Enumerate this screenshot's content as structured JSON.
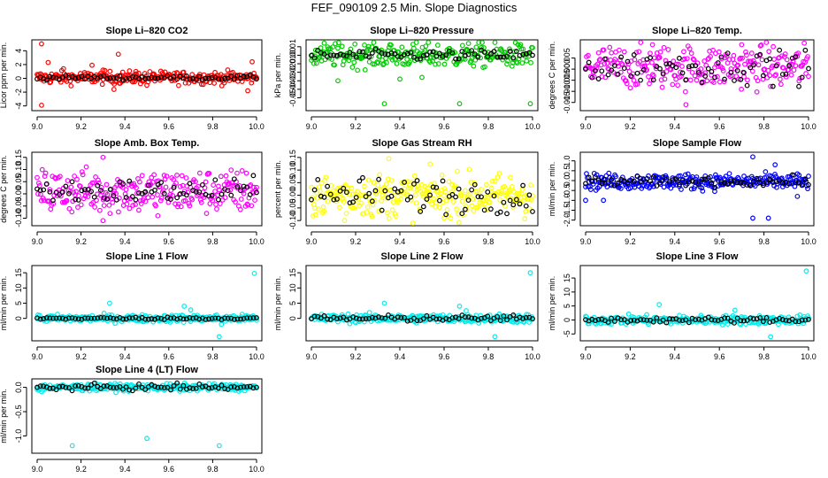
{
  "figure": {
    "title": "FEF_090109  2.5 Min. Slope Diagnostics"
  },
  "chart_data": [
    {
      "type": "scatter",
      "title": "Slope Li–820 CO2",
      "ylabel": "Licor ppm per min.",
      "xlim": [
        9.0,
        10.0
      ],
      "ylim": [
        -4.3,
        5.2
      ],
      "xticks": [
        "9.0",
        "9.2",
        "9.4",
        "9.6",
        "9.8",
        "10.0"
      ],
      "yticks": [
        -4,
        -2,
        0,
        2,
        4
      ],
      "ytick_labels": [
        "-4",
        "-2",
        "0",
        "2",
        "4"
      ],
      "color": "#ff0000",
      "center": 0.1,
      "spread": 0.45,
      "black_spread": 0.15,
      "outliers": [
        [
          9.02,
          5.0
        ],
        [
          9.02,
          -3.9
        ],
        [
          9.05,
          2.3
        ],
        [
          9.12,
          1.4
        ],
        [
          9.25,
          1.9
        ],
        [
          9.3,
          1.2
        ],
        [
          9.35,
          -1.6
        ],
        [
          9.37,
          3.5
        ],
        [
          9.45,
          1.0
        ],
        [
          9.5,
          -1.0
        ],
        [
          9.98,
          2.4
        ],
        [
          9.96,
          -1.8
        ]
      ]
    },
    {
      "type": "scatter",
      "title": "Slope Li–820 Pressure",
      "ylabel": "kPa per min.",
      "xlim": [
        9.0,
        10.0
      ],
      "ylim": [
        -0.062,
        0.015
      ],
      "xticks": [
        "9.0",
        "9.2",
        "9.4",
        "9.6",
        "9.8",
        "10.0"
      ],
      "yticks": [
        -0.05,
        -0.04,
        -0.03,
        -0.02,
        -0.01,
        0.0,
        0.01
      ],
      "ytick_labels": [
        "-0.05",
        "-0.04",
        "-0.03",
        "-0.02",
        "-0.01",
        "0.00",
        "0.01"
      ],
      "color": "#00cc00",
      "center": 0.0,
      "spread": 0.007,
      "black_spread": 0.003,
      "outliers": [
        [
          9.33,
          -0.057
        ],
        [
          9.67,
          -0.057
        ],
        [
          9.99,
          -0.057
        ],
        [
          9.12,
          -0.03
        ],
        [
          9.4,
          -0.028
        ],
        [
          9.5,
          -0.026
        ],
        [
          9.24,
          0.012
        ],
        [
          9.36,
          0.012
        ]
      ]
    },
    {
      "type": "scatter",
      "title": "Slope Li–820 Temp.",
      "ylabel": "degrees C per min.",
      "xlim": [
        9.0,
        10.0
      ],
      "ylim": [
        -0.0175,
        0.012
      ],
      "xticks": [
        "9.0",
        "9.2",
        "9.4",
        "9.6",
        "9.8",
        "10.0"
      ],
      "yticks": [
        -0.015,
        -0.01,
        -0.005,
        0.0,
        0.005
      ],
      "ytick_labels": [
        "-0.015",
        "-0.010",
        "-0.005",
        "0.000",
        "0.005"
      ],
      "color": "#ff00ff",
      "center": 0.001,
      "spread": 0.0048,
      "black_spread": 0.0035,
      "outliers": [
        [
          9.45,
          -0.016
        ],
        [
          9.3,
          0.011
        ],
        [
          9.7,
          0.011
        ]
      ]
    },
    {
      "type": "scatter",
      "title": "Slope Amb. Box Temp.",
      "ylabel": "degrees C per min.",
      "xlim": [
        9.0,
        10.0
      ],
      "ylim": [
        -0.12,
        0.16
      ],
      "xticks": [
        "9.0",
        "9.2",
        "9.4",
        "9.6",
        "9.8",
        "10.0"
      ],
      "yticks": [
        -0.1,
        -0.05,
        0.0,
        0.05,
        0.1,
        0.15
      ],
      "ytick_labels": [
        "-0.10",
        "-0.05",
        "0.00",
        "0.05",
        "0.10",
        "0.15"
      ],
      "color": "#ff00ff",
      "center": 0.01,
      "spread": 0.045,
      "black_spread": 0.025,
      "outliers": [
        [
          9.3,
          0.15
        ],
        [
          9.3,
          -0.11
        ],
        [
          9.55,
          -0.09
        ]
      ]
    },
    {
      "type": "scatter",
      "title": "Slope Gas Stream RH",
      "ylabel": "percent per min.",
      "xlim": [
        9.0,
        10.0
      ],
      "ylim": [
        -0.11,
        0.16
      ],
      "xticks": [
        "9.0",
        "9.2",
        "9.4",
        "9.6",
        "9.8",
        "10.0"
      ],
      "yticks": [
        -0.1,
        -0.05,
        0.0,
        0.05,
        0.1,
        0.15
      ],
      "ytick_labels": [
        "-0.10",
        "-0.05",
        "0.00",
        "0.05",
        "0.10",
        "0.15"
      ],
      "color": "#ffff00",
      "center": 0.0,
      "spread": 0.042,
      "black_spread": 0.035,
      "outliers": [
        [
          9.35,
          0.145
        ],
        [
          9.15,
          -0.1
        ],
        [
          9.6,
          -0.09
        ]
      ]
    },
    {
      "type": "scatter",
      "title": "Slope Sample Flow",
      "ylabel": "ml/min per min.",
      "xlim": [
        9.0,
        10.0
      ],
      "ylim": [
        -2.15,
        1.3
      ],
      "xticks": [
        "9.0",
        "9.2",
        "9.4",
        "9.6",
        "9.8",
        "10.0"
      ],
      "yticks": [
        -2.0,
        -1.5,
        -1.0,
        -0.5,
        0.0,
        0.5,
        1.0
      ],
      "ytick_labels": [
        "-2.0",
        "-1.5",
        "-1.0",
        "-0.5",
        "0.0",
        "0.5",
        "1.0"
      ],
      "color": "#0000ff",
      "center": -0.05,
      "spread": 0.2,
      "black_spread": 0.12,
      "outliers": [
        [
          9.75,
          1.2
        ],
        [
          9.75,
          -1.9
        ],
        [
          9.82,
          -1.9
        ],
        [
          9.85,
          0.8
        ],
        [
          9.0,
          -1.0
        ],
        [
          9.08,
          -1.0
        ],
        [
          9.95,
          -0.8
        ]
      ]
    },
    {
      "type": "scatter",
      "title": "Slope Line 1 Flow",
      "ylabel": "ml/min per min.",
      "xlim": [
        9.0,
        10.0
      ],
      "ylim": [
        -6.5,
        16.5
      ],
      "xticks": [
        "9.0",
        "9.2",
        "9.4",
        "9.6",
        "9.8",
        "10.0"
      ],
      "yticks": [
        0,
        5,
        10,
        15
      ],
      "ytick_labels": [
        "0",
        "5",
        "10",
        "15"
      ],
      "color": "#00eeee",
      "center": 0.0,
      "spread": 0.6,
      "black_spread": 0.2,
      "outliers": [
        [
          9.33,
          5.0
        ],
        [
          9.99,
          14.8
        ],
        [
          9.83,
          -6.0
        ],
        [
          9.67,
          4.0
        ],
        [
          9.7,
          2.8
        ],
        [
          9.84,
          -2.0
        ]
      ]
    },
    {
      "type": "scatter",
      "title": "Slope Line 2 Flow",
      "ylabel": "ml/min per min.",
      "xlim": [
        9.0,
        10.0
      ],
      "ylim": [
        -6.5,
        16.5
      ],
      "xticks": [
        "9.0",
        "9.2",
        "9.4",
        "9.6",
        "9.8",
        "10.0"
      ],
      "yticks": [
        0,
        5,
        10,
        15
      ],
      "ytick_labels": [
        "0",
        "5",
        "10",
        "15"
      ],
      "color": "#00eeee",
      "center": 0.0,
      "spread": 0.7,
      "black_spread": 0.5,
      "outliers": [
        [
          9.33,
          5.0
        ],
        [
          9.99,
          15.0
        ],
        [
          9.83,
          -6.0
        ],
        [
          9.67,
          4.0
        ],
        [
          9.7,
          2.5
        ]
      ]
    },
    {
      "type": "scatter",
      "title": "Slope Line 3 Flow",
      "ylabel": "ml/min per min.",
      "xlim": [
        9.0,
        10.0
      ],
      "ylim": [
        -6.5,
        18.5
      ],
      "xticks": [
        "9.0",
        "9.2",
        "9.4",
        "9.6",
        "9.8",
        "10.0"
      ],
      "yticks": [
        -5,
        0,
        5,
        10,
        15
      ],
      "ytick_labels": [
        "-5",
        "0",
        "5",
        "10",
        "15"
      ],
      "color": "#00eeee",
      "center": 0.0,
      "spread": 0.8,
      "black_spread": 0.5,
      "outliers": [
        [
          9.33,
          5.5
        ],
        [
          9.99,
          17.5
        ],
        [
          9.83,
          -6.0
        ],
        [
          9.67,
          3.5
        ]
      ]
    },
    {
      "type": "scatter",
      "title": "Slope Line 4 (LT) Flow",
      "ylabel": "ml/min per min.",
      "xlim": [
        9.0,
        10.0
      ],
      "ylim": [
        -1.3,
        0.12
      ],
      "xticks": [
        "9.0",
        "9.2",
        "9.4",
        "9.6",
        "9.8",
        "10.0"
      ],
      "yticks": [
        -1.0,
        -0.5,
        0.0
      ],
      "ytick_labels": [
        "-1.0",
        "-0.5",
        "0.0"
      ],
      "color": "#00eeee",
      "center": 0.0,
      "spread": 0.035,
      "black_spread": 0.03,
      "outliers": [
        [
          9.16,
          -1.2
        ],
        [
          9.5,
          -1.05
        ],
        [
          9.83,
          -1.2
        ],
        [
          9.02,
          -0.09
        ],
        [
          9.65,
          -0.08
        ]
      ]
    }
  ]
}
